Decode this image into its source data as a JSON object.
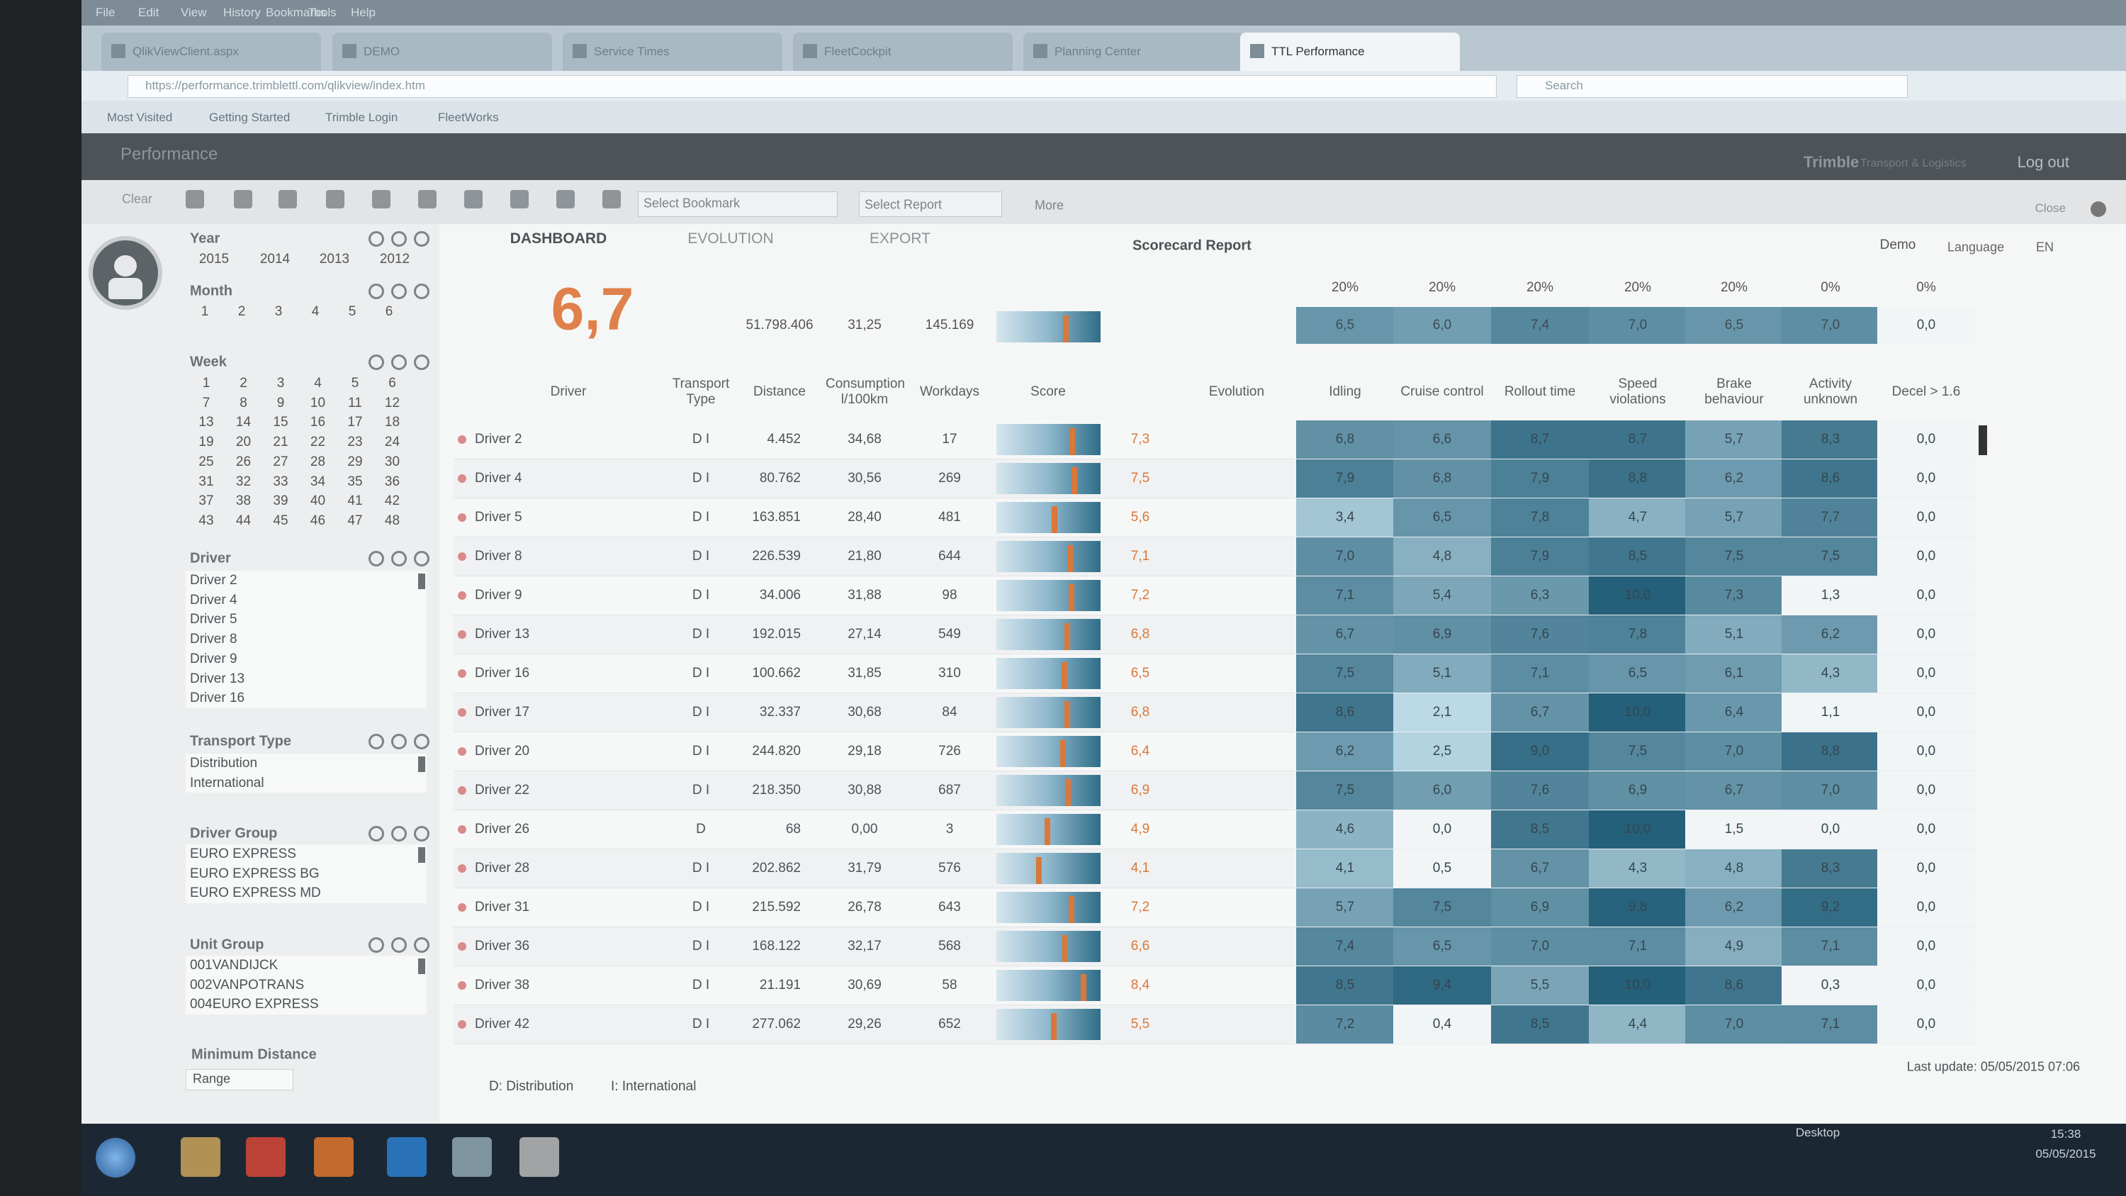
{
  "browser": {
    "menu": [
      "File",
      "Edit",
      "View",
      "History",
      "Bookmarks",
      "Tools",
      "Help"
    ],
    "tabs": [
      "QlikViewClient.aspx",
      "DEMO",
      "Service Times",
      "FleetCockpit",
      "Planning Center",
      "TTL Performance"
    ],
    "url": "https://performance.trimblettl.com/qlikview/index.htm",
    "search": "Search",
    "bookmarks": [
      "Most Visited",
      "Getting Started",
      "Trimble Login",
      "FleetWorks"
    ]
  },
  "app": {
    "title": "Performance",
    "brand": "Trimble",
    "brand_sub": "Transport & Logistics",
    "logout": "Log out"
  },
  "toolbar": {
    "clear": "Clear",
    "bookmark": "Select Bookmark",
    "report": "Select Report",
    "more": "More",
    "close": "Close"
  },
  "filters": {
    "year": {
      "label": "Year",
      "items": [
        2015,
        2014,
        2013,
        2012
      ]
    },
    "month": {
      "label": "Month",
      "items": [
        1,
        2,
        3,
        4,
        5,
        6
      ]
    },
    "week": {
      "label": "Week",
      "items": [
        1,
        2,
        3,
        4,
        5,
        6,
        7,
        8,
        9,
        10,
        11,
        12,
        13,
        14,
        15,
        16,
        17,
        18,
        19,
        20,
        21,
        22,
        23,
        24,
        25,
        26,
        27,
        28,
        29,
        30,
        31,
        32,
        33,
        34,
        35,
        36,
        37,
        38,
        39,
        40,
        41,
        42,
        43,
        44,
        45,
        46,
        47,
        48
      ]
    },
    "driver": {
      "label": "Driver",
      "items": [
        "Driver 2",
        "Driver 4",
        "Driver 5",
        "Driver 8",
        "Driver 9",
        "Driver 13",
        "Driver 16"
      ]
    },
    "transport_type": {
      "label": "Transport Type",
      "items": [
        "Distribution",
        "International"
      ]
    },
    "driver_group": {
      "label": "Driver Group",
      "items": [
        "EURO EXPRESS",
        "EURO EXPRESS BG",
        "EURO EXPRESS MD"
      ]
    },
    "unit_group": {
      "label": "Unit Group",
      "items": [
        "001VANDIJCK",
        "002VANPOTRANS",
        "004EURO EXPRESS"
      ]
    },
    "minimum_distance": {
      "label": "Minimum Distance",
      "range": "Range"
    }
  },
  "dashboard": {
    "tabs": [
      "DASHBOARD",
      "EVOLUTION",
      "EXPORT"
    ],
    "report": "Scorecard Report",
    "user": "Demo",
    "language_label": "Language",
    "language": "EN",
    "summary": {
      "score": "6,7",
      "distance": "51.798.406",
      "consumption": "31,25",
      "workdays": "145.169",
      "weights": [
        "20%",
        "20%",
        "20%",
        "20%",
        "20%",
        "0%",
        "0%"
      ],
      "metrics": [
        "6,5",
        "6,0",
        "7,4",
        "7,0",
        "6,5",
        "7,0",
        "0,0"
      ]
    },
    "columns": {
      "driver": "Driver",
      "transport_type": "Transport Type",
      "distance": "Distance",
      "consumption": "Consumption l/100km",
      "workdays": "Workdays",
      "score": "Score",
      "evolution": "Evolution",
      "metrics": [
        "Idling",
        "Cruise control",
        "Rollout time",
        "Speed violations",
        "Brake behaviour",
        "Activity unknown",
        "Decel > 1.6"
      ]
    },
    "rows": [
      {
        "driver": "Driver 2",
        "type": "D I",
        "distance": "4.452",
        "consumption": "34,68",
        "workdays": "17",
        "score": "7,3",
        "metrics": [
          "6,8",
          "6,6",
          "8,7",
          "8,7",
          "5,7",
          "8,3",
          "0,0"
        ]
      },
      {
        "driver": "Driver 4",
        "type": "D I",
        "distance": "80.762",
        "consumption": "30,56",
        "workdays": "269",
        "score": "7,5",
        "metrics": [
          "7,9",
          "6,8",
          "7,9",
          "8,8",
          "6,2",
          "8,6",
          "0,0"
        ]
      },
      {
        "driver": "Driver 5",
        "type": "D I",
        "distance": "163.851",
        "consumption": "28,40",
        "workdays": "481",
        "score": "5,6",
        "metrics": [
          "3,4",
          "6,5",
          "7,8",
          "4,7",
          "5,7",
          "7,7",
          "0,0"
        ]
      },
      {
        "driver": "Driver 8",
        "type": "D I",
        "distance": "226.539",
        "consumption": "21,80",
        "workdays": "644",
        "score": "7,1",
        "metrics": [
          "7,0",
          "4,8",
          "7,9",
          "8,5",
          "7,5",
          "7,5",
          "0,0"
        ]
      },
      {
        "driver": "Driver 9",
        "type": "D I",
        "distance": "34.006",
        "consumption": "31,88",
        "workdays": "98",
        "score": "7,2",
        "metrics": [
          "7,1",
          "5,4",
          "6,3",
          "10,0",
          "7,3",
          "1,3",
          "0,0"
        ]
      },
      {
        "driver": "Driver 13",
        "type": "D I",
        "distance": "192.015",
        "consumption": "27,14",
        "workdays": "549",
        "score": "6,8",
        "metrics": [
          "6,7",
          "6,9",
          "7,6",
          "7,8",
          "5,1",
          "6,2",
          "0,0"
        ]
      },
      {
        "driver": "Driver 16",
        "type": "D I",
        "distance": "100.662",
        "consumption": "31,85",
        "workdays": "310",
        "score": "6,5",
        "metrics": [
          "7,5",
          "5,1",
          "7,1",
          "6,5",
          "6,1",
          "4,3",
          "0,0"
        ]
      },
      {
        "driver": "Driver 17",
        "type": "D I",
        "distance": "32.337",
        "consumption": "30,68",
        "workdays": "84",
        "score": "6,8",
        "metrics": [
          "8,6",
          "2,1",
          "6,7",
          "10,0",
          "6,4",
          "1,1",
          "0,0"
        ]
      },
      {
        "driver": "Driver 20",
        "type": "D I",
        "distance": "244.820",
        "consumption": "29,18",
        "workdays": "726",
        "score": "6,4",
        "metrics": [
          "6,2",
          "2,5",
          "9,0",
          "7,5",
          "7,0",
          "8,8",
          "0,0"
        ]
      },
      {
        "driver": "Driver 22",
        "type": "D I",
        "distance": "218.350",
        "consumption": "30,88",
        "workdays": "687",
        "score": "6,9",
        "metrics": [
          "7,5",
          "6,0",
          "7,6",
          "6,9",
          "6,7",
          "7,0",
          "0,0"
        ]
      },
      {
        "driver": "Driver 26",
        "type": "D",
        "distance": "68",
        "consumption": "0,00",
        "workdays": "3",
        "score": "4,9",
        "metrics": [
          "4,6",
          "0,0",
          "8,5",
          "10,0",
          "1,5",
          "0,0",
          "0,0"
        ]
      },
      {
        "driver": "Driver 28",
        "type": "D I",
        "distance": "202.862",
        "consumption": "31,79",
        "workdays": "576",
        "score": "4,1",
        "metrics": [
          "4,1",
          "0,5",
          "6,7",
          "4,3",
          "4,8",
          "8,3",
          "0,0"
        ]
      },
      {
        "driver": "Driver 31",
        "type": "D I",
        "distance": "215.592",
        "consumption": "26,78",
        "workdays": "643",
        "score": "7,2",
        "metrics": [
          "5,7",
          "7,5",
          "6,9",
          "9,8",
          "6,2",
          "9,2",
          "0,0"
        ]
      },
      {
        "driver": "Driver 36",
        "type": "D I",
        "distance": "168.122",
        "consumption": "32,17",
        "workdays": "568",
        "score": "6,6",
        "metrics": [
          "7,4",
          "6,5",
          "7,0",
          "7,1",
          "4,9",
          "7,1",
          "0,0"
        ]
      },
      {
        "driver": "Driver 38",
        "type": "D I",
        "distance": "21.191",
        "consumption": "30,69",
        "workdays": "58",
        "score": "8,4",
        "metrics": [
          "8,5",
          "9,4",
          "5,5",
          "10,0",
          "8,6",
          "0,3",
          "0,0"
        ]
      },
      {
        "driver": "Driver 42",
        "type": "D I",
        "distance": "277.062",
        "consumption": "29,26",
        "workdays": "652",
        "score": "5,5",
        "metrics": [
          "7,2",
          "0,4",
          "8,5",
          "4,4",
          "7,0",
          "7,1",
          "0,0"
        ]
      }
    ],
    "legend": [
      "D: Distribution",
      "I: International"
    ],
    "last_update": "Last update: 05/05/2015 07:06"
  },
  "taskbar": {
    "desktop": "Desktop",
    "time": "15:38",
    "date": "05/05/2015"
  }
}
